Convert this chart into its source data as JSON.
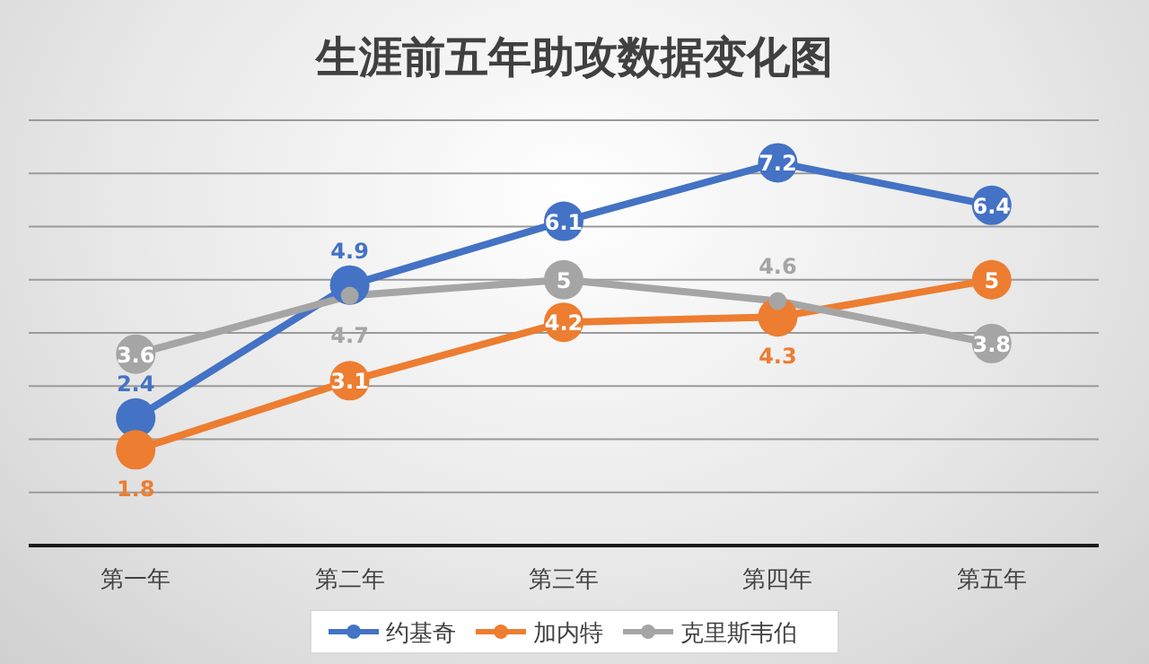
{
  "chart_data": {
    "type": "line",
    "title": "生涯前五年助攻数据变化图",
    "categories": [
      "第一年",
      "第二年",
      "第三年",
      "第四年",
      "第五年"
    ],
    "series": [
      {
        "name": "约基奇",
        "color": "#4472c4",
        "values": [
          2.4,
          4.9,
          6.1,
          7.2,
          6.4
        ]
      },
      {
        "name": "加内特",
        "color": "#ed7d31",
        "values": [
          1.8,
          3.1,
          4.2,
          4.3,
          5
        ]
      },
      {
        "name": "克里斯韦伯",
        "color": "#a5a5a5",
        "values": [
          3.6,
          4.7,
          5,
          4.6,
          3.8
        ]
      }
    ],
    "ylim": [
      0,
      8
    ],
    "yticks": [
      {
        "value": 0,
        "label": null
      },
      {
        "value": 1,
        "label": null
      },
      {
        "value": 2,
        "label": null
      },
      {
        "value": 3,
        "label": null
      },
      {
        "value": 4,
        "label": null
      },
      {
        "value": 5,
        "label": null
      },
      {
        "value": 6,
        "label": null
      },
      {
        "value": 7,
        "label": null
      },
      {
        "value": 8,
        "label": null
      }
    ],
    "tick_labels": "x",
    "grid": "y",
    "legend": "bottom",
    "marker": "circle",
    "line_style": "solid",
    "data_labels": true
  }
}
